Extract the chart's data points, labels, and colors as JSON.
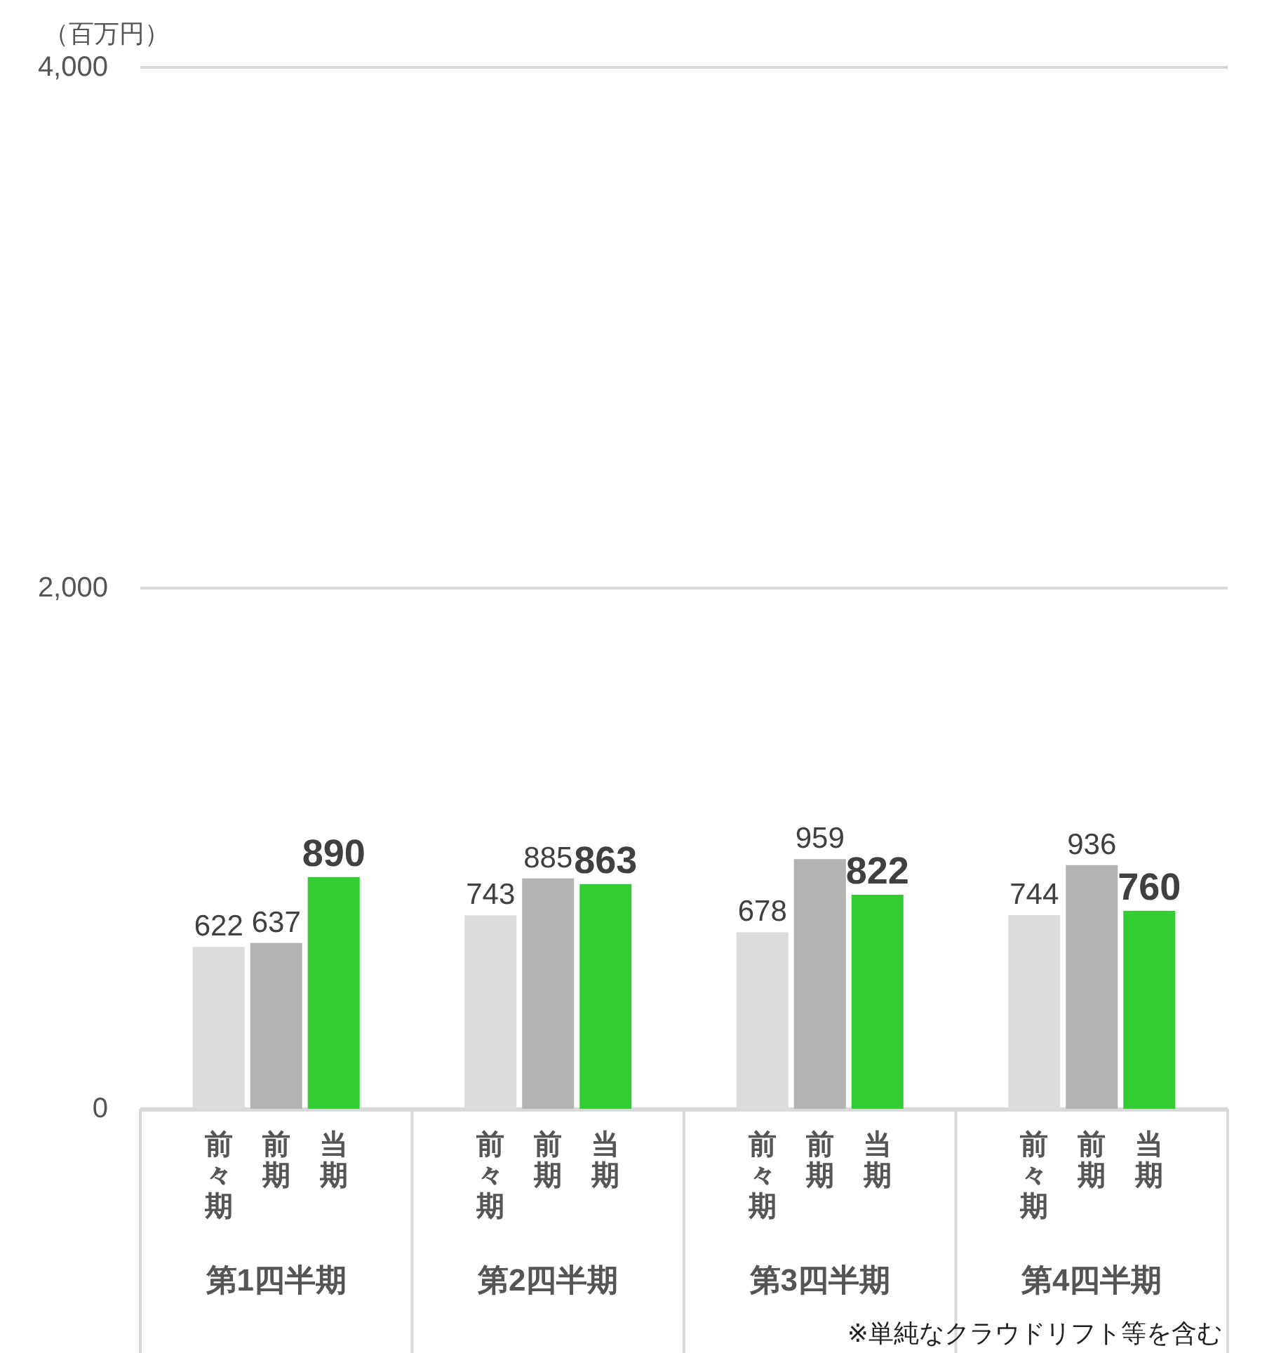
{
  "chart_data": {
    "type": "bar",
    "ylabel": "（百万円）",
    "categories": [
      "第1四半期",
      "第2四半期",
      "第3四半期",
      "第4四半期"
    ],
    "series": [
      {
        "name": "前々期",
        "color": "#dcdcdc",
        "values": [
          622,
          743,
          678,
          744
        ]
      },
      {
        "name": "前期",
        "color": "#b3b3b3",
        "values": [
          637,
          885,
          959,
          936
        ]
      },
      {
        "name": "当期",
        "color": "#33cc33",
        "values": [
          890,
          863,
          822,
          760
        ]
      }
    ],
    "ylim": [
      0,
      4000
    ],
    "yticks": [
      0,
      {
        "value": 2000,
        "label": "2,000"
      },
      {
        "value": 4000,
        "label": "4,000"
      }
    ],
    "grid": "y",
    "data_labels": true,
    "legend": false,
    "annotations": [
      "※単純なクラウドリフト等を含む"
    ]
  }
}
